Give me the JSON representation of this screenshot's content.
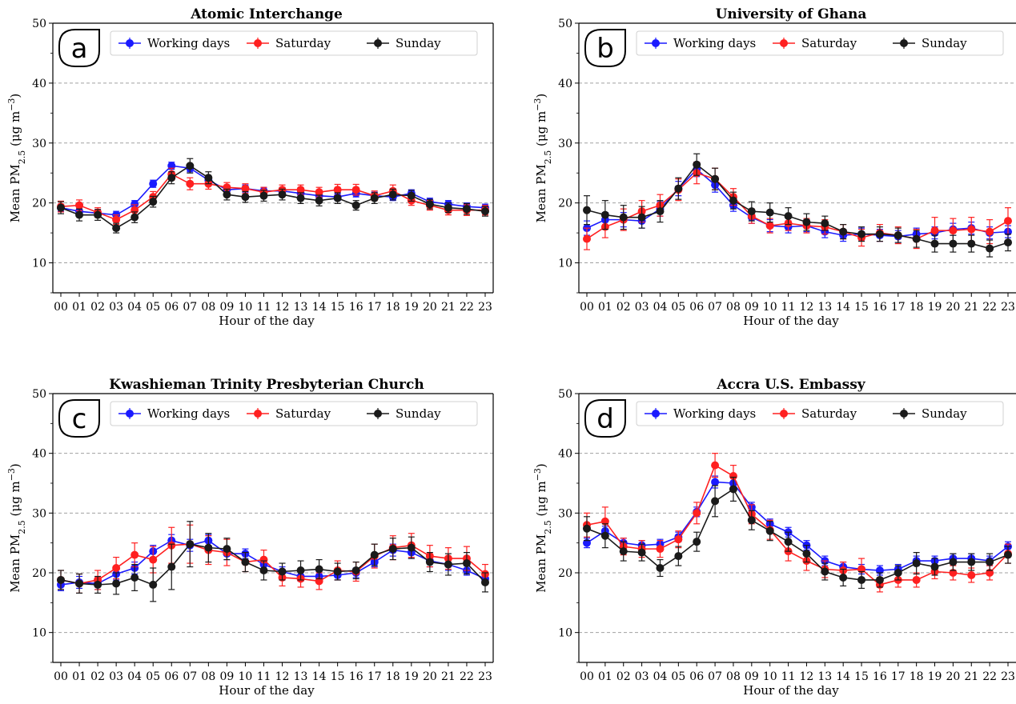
{
  "chart_data": [
    {
      "type": "line",
      "panel_letter": "a",
      "title": "Atomic Interchange",
      "xlabel": "Hour of the day",
      "ylabel": "Mean PM2.5 (μg m−3)",
      "ylim": [
        5,
        50
      ],
      "yticks": [
        10,
        20,
        30,
        40,
        50
      ],
      "grid": "y-dashed",
      "legend_position": "top",
      "categories": [
        "00",
        "01",
        "02",
        "03",
        "04",
        "05",
        "06",
        "07",
        "08",
        "09",
        "10",
        "11",
        "12",
        "13",
        "14",
        "15",
        "16",
        "17",
        "18",
        "19",
        "20",
        "21",
        "22",
        "23"
      ],
      "series": [
        {
          "name": "Working days",
          "color": "#1a1aff",
          "values": [
            19.2,
            18.6,
            18.3,
            18.0,
            19.8,
            23.2,
            26.2,
            25.8,
            23.8,
            22.2,
            22.4,
            22.0,
            22.0,
            21.6,
            21.2,
            21.0,
            21.6,
            21.2,
            21.0,
            21.6,
            20.2,
            19.8,
            19.4,
            19.2
          ],
          "errors": [
            0.6,
            0.6,
            0.6,
            0.6,
            0.6,
            0.6,
            0.6,
            0.6,
            0.6,
            0.6,
            0.6,
            0.6,
            0.6,
            0.6,
            0.6,
            0.6,
            0.6,
            0.6,
            0.6,
            0.6,
            0.6,
            0.6,
            0.6,
            0.6
          ]
        },
        {
          "name": "Saturday",
          "color": "#ff2020",
          "values": [
            19.4,
            19.6,
            18.4,
            17.2,
            18.8,
            21.0,
            24.8,
            23.2,
            23.2,
            22.6,
            22.4,
            21.8,
            22.2,
            22.2,
            21.8,
            22.2,
            22.2,
            21.2,
            22.0,
            20.4,
            19.6,
            18.8,
            18.8,
            18.8
          ],
          "errors": [
            0.9,
            0.9,
            0.8,
            0.8,
            0.9,
            0.9,
            1.0,
            1.0,
            0.9,
            0.8,
            0.8,
            0.8,
            0.8,
            0.8,
            0.8,
            0.9,
            0.9,
            0.8,
            1.0,
            0.8,
            0.8,
            0.8,
            0.9,
            0.8
          ]
        },
        {
          "name": "Sunday",
          "color": "#1a1a1a",
          "values": [
            19.2,
            18.0,
            18.0,
            15.8,
            17.6,
            20.2,
            24.2,
            26.2,
            24.2,
            21.4,
            21.0,
            21.2,
            21.4,
            20.8,
            20.4,
            20.8,
            19.6,
            20.8,
            21.4,
            21.2,
            19.8,
            19.2,
            19.0,
            18.6
          ],
          "errors": [
            1.0,
            1.0,
            0.9,
            0.8,
            0.9,
            0.9,
            1.0,
            1.2,
            1.0,
            0.9,
            0.9,
            0.9,
            0.9,
            0.9,
            0.9,
            0.9,
            0.8,
            0.9,
            0.9,
            0.9,
            0.8,
            0.8,
            0.9,
            0.8
          ]
        }
      ]
    },
    {
      "type": "line",
      "panel_letter": "b",
      "title": "University of Ghana",
      "xlabel": "Hour of the day",
      "ylabel": "Mean PM2.5 (μg m−3)",
      "ylim": [
        5,
        50
      ],
      "yticks": [
        10,
        20,
        30,
        40,
        50
      ],
      "grid": "y-dashed",
      "legend_position": "top",
      "categories": [
        "00",
        "01",
        "02",
        "03",
        "04",
        "05",
        "06",
        "07",
        "08",
        "09",
        "10",
        "11",
        "12",
        "13",
        "14",
        "15",
        "16",
        "17",
        "18",
        "19",
        "20",
        "21",
        "22",
        "23"
      ],
      "series": [
        {
          "name": "Working days",
          "color": "#1a1aff",
          "values": [
            15.8,
            17.2,
            17.2,
            17.0,
            19.0,
            22.4,
            25.6,
            23.0,
            19.6,
            17.6,
            16.2,
            16.0,
            16.2,
            15.2,
            14.6,
            14.8,
            14.6,
            14.4,
            14.8,
            15.0,
            15.6,
            15.8,
            15.0,
            15.2
          ],
          "errors": [
            1.2,
            1.2,
            1.2,
            1.2,
            1.2,
            1.2,
            1.2,
            1.2,
            1.0,
            1.0,
            1.0,
            1.0,
            1.0,
            1.0,
            1.0,
            1.0,
            1.0,
            1.0,
            1.0,
            1.0,
            1.0,
            1.0,
            1.0,
            1.0
          ]
        },
        {
          "name": "Saturday",
          "color": "#ff2020",
          "values": [
            14.0,
            16.0,
            17.2,
            18.6,
            19.6,
            22.2,
            25.0,
            24.0,
            21.0,
            17.8,
            16.2,
            16.6,
            16.2,
            16.0,
            15.2,
            14.2,
            15.0,
            14.6,
            14.0,
            15.4,
            15.4,
            15.6,
            15.2,
            17.0
          ],
          "errors": [
            1.8,
            1.8,
            1.8,
            1.8,
            1.8,
            1.8,
            1.8,
            1.8,
            1.4,
            1.2,
            1.2,
            1.2,
            1.2,
            1.2,
            1.2,
            1.4,
            1.4,
            1.4,
            1.6,
            2.2,
            2.0,
            2.0,
            2.0,
            2.2
          ]
        },
        {
          "name": "Sunday",
          "color": "#1a1a1a",
          "values": [
            18.8,
            18.0,
            17.6,
            17.6,
            18.6,
            22.4,
            26.4,
            24.0,
            20.4,
            18.6,
            18.4,
            17.8,
            16.8,
            16.6,
            15.2,
            14.8,
            14.8,
            14.6,
            14.0,
            13.2,
            13.2,
            13.2,
            12.4,
            13.4
          ],
          "errors": [
            2.4,
            2.4,
            2.0,
            1.8,
            1.8,
            1.8,
            1.8,
            1.8,
            1.4,
            1.6,
            1.6,
            1.4,
            1.4,
            1.2,
            1.2,
            1.2,
            1.2,
            1.2,
            1.4,
            1.4,
            1.4,
            1.4,
            1.4,
            1.4
          ]
        }
      ]
    },
    {
      "type": "line",
      "panel_letter": "c",
      "title": "Kwashieman Trinity Presbyterian Church",
      "xlabel": "Hour of the day",
      "ylabel": "Mean PM2.5 (μg m−3)",
      "ylim": [
        5,
        50
      ],
      "yticks": [
        10,
        20,
        30,
        40,
        50
      ],
      "grid": "y-dashed",
      "legend_position": "top",
      "categories": [
        "00",
        "01",
        "02",
        "03",
        "04",
        "05",
        "06",
        "07",
        "08",
        "09",
        "10",
        "11",
        "12",
        "13",
        "14",
        "15",
        "16",
        "17",
        "18",
        "19",
        "20",
        "21",
        "22",
        "23"
      ],
      "series": [
        {
          "name": "Working days",
          "color": "#1a1aff",
          "values": [
            18.0,
            18.4,
            18.2,
            19.8,
            20.8,
            23.6,
            25.4,
            24.6,
            25.4,
            23.2,
            23.2,
            21.4,
            20.2,
            19.4,
            19.4,
            19.6,
            20.0,
            21.8,
            23.8,
            23.4,
            22.0,
            21.4,
            20.4,
            19.0
          ],
          "errors": [
            1.0,
            1.0,
            1.0,
            1.0,
            1.0,
            1.0,
            1.0,
            1.0,
            1.0,
            1.0,
            0.8,
            0.8,
            0.8,
            0.8,
            0.8,
            0.8,
            0.8,
            0.8,
            1.0,
            1.0,
            1.0,
            1.0,
            0.8,
            0.8
          ]
        },
        {
          "name": "Saturday",
          "color": "#ff2020",
          "values": [
            18.8,
            18.2,
            18.8,
            20.8,
            23.0,
            22.2,
            24.6,
            24.8,
            23.8,
            23.4,
            21.8,
            22.2,
            19.2,
            19.0,
            18.6,
            20.4,
            20.2,
            22.8,
            24.2,
            24.6,
            22.8,
            22.4,
            22.4,
            19.8
          ],
          "errors": [
            1.6,
            1.6,
            1.6,
            1.8,
            2.0,
            2.2,
            3.0,
            3.2,
            2.4,
            2.2,
            1.6,
            1.6,
            1.4,
            1.4,
            1.4,
            1.6,
            1.6,
            2.0,
            2.0,
            2.0,
            1.8,
            1.8,
            2.0,
            1.6
          ]
        },
        {
          "name": "Sunday",
          "color": "#1a1a1a",
          "values": [
            18.8,
            18.2,
            18.0,
            18.2,
            19.2,
            18.0,
            21.0,
            24.8,
            24.2,
            24.0,
            21.8,
            20.4,
            20.2,
            20.4,
            20.6,
            20.2,
            20.4,
            23.0,
            24.0,
            24.2,
            21.8,
            21.4,
            21.6,
            18.4
          ],
          "errors": [
            1.6,
            1.6,
            1.4,
            1.8,
            2.2,
            2.8,
            3.8,
            3.8,
            2.4,
            1.8,
            1.6,
            1.6,
            1.4,
            1.6,
            1.6,
            1.4,
            1.4,
            1.8,
            1.8,
            1.8,
            1.6,
            1.8,
            1.8,
            1.6
          ]
        }
      ]
    },
    {
      "type": "line",
      "panel_letter": "d",
      "title": "Accra U.S. Embassy",
      "xlabel": "Hour of the day",
      "ylabel": "Mean PM2.5 (μg m−3)",
      "ylim": [
        5,
        50
      ],
      "yticks": [
        10,
        20,
        30,
        40,
        50
      ],
      "grid": "y-dashed",
      "legend_position": "top",
      "categories": [
        "00",
        "01",
        "02",
        "03",
        "04",
        "05",
        "06",
        "07",
        "08",
        "09",
        "10",
        "11",
        "12",
        "13",
        "14",
        "15",
        "16",
        "17",
        "18",
        "19",
        "20",
        "21",
        "22",
        "23"
      ],
      "series": [
        {
          "name": "Working days",
          "color": "#1a1aff",
          "values": [
            25.0,
            27.0,
            25.0,
            24.6,
            24.8,
            26.0,
            30.2,
            35.2,
            35.0,
            31.0,
            28.2,
            26.8,
            24.6,
            22.0,
            21.0,
            20.6,
            20.4,
            20.6,
            22.0,
            22.0,
            22.4,
            22.4,
            22.0,
            24.4
          ],
          "errors": [
            0.8,
            0.8,
            0.8,
            0.8,
            0.8,
            0.8,
            0.8,
            1.0,
            1.0,
            0.8,
            0.8,
            0.8,
            0.8,
            0.8,
            0.8,
            0.8,
            0.8,
            0.8,
            0.8,
            0.8,
            0.8,
            0.8,
            0.8,
            0.8
          ]
        },
        {
          "name": "Saturday",
          "color": "#ff2020",
          "values": [
            28.0,
            28.6,
            24.4,
            24.0,
            24.0,
            25.6,
            30.0,
            38.0,
            36.2,
            29.8,
            27.2,
            23.6,
            22.0,
            20.6,
            20.4,
            20.6,
            18.0,
            18.8,
            18.8,
            20.2,
            20.0,
            19.6,
            20.0,
            23.2
          ],
          "errors": [
            2.0,
            2.4,
            1.4,
            1.4,
            1.4,
            1.4,
            1.8,
            2.0,
            1.8,
            1.6,
            1.6,
            1.6,
            1.6,
            1.4,
            1.4,
            1.8,
            1.2,
            1.2,
            1.2,
            1.2,
            1.2,
            1.2,
            1.2,
            1.6
          ]
        },
        {
          "name": "Sunday",
          "color": "#1a1a1a",
          "values": [
            27.4,
            26.2,
            23.6,
            23.4,
            20.8,
            22.8,
            25.2,
            32.0,
            34.0,
            28.8,
            27.0,
            25.2,
            23.2,
            20.2,
            19.2,
            18.8,
            18.8,
            20.0,
            21.6,
            21.0,
            21.8,
            21.8,
            21.8,
            23.0
          ],
          "errors": [
            2.0,
            2.0,
            1.6,
            1.4,
            1.4,
            1.6,
            1.6,
            2.6,
            2.0,
            1.6,
            1.6,
            1.6,
            1.4,
            1.4,
            1.4,
            1.4,
            1.2,
            1.2,
            1.8,
            1.4,
            1.4,
            1.4,
            1.4,
            1.4
          ]
        }
      ]
    }
  ]
}
